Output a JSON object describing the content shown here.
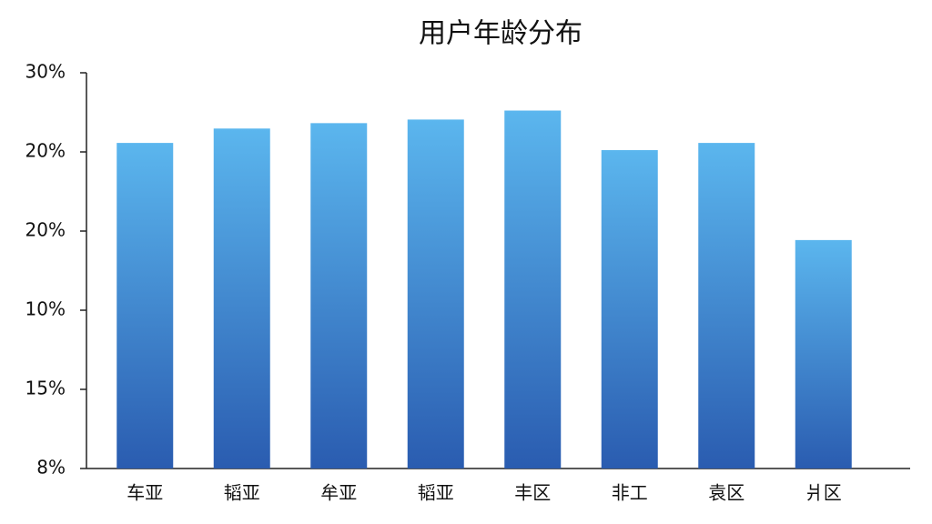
{
  "chart_data": {
    "type": "bar",
    "title": "用户年龄分布",
    "categories": [
      "车亚",
      "韬亚",
      "牟亚",
      "韬亚",
      "丰区",
      "非工",
      "袁区",
      "爿区"
    ],
    "values": [
      26.1,
      26.9,
      27.2,
      27.4,
      27.9,
      25.7,
      26.1,
      20.7
    ],
    "color": [
      "#5bb6ee",
      "#2a5cb0"
    ],
    "ylim": [
      8,
      30
    ],
    "y_axis_labels": [
      "30%",
      "20%",
      "20%",
      "10%",
      "15%",
      "8%"
    ]
  }
}
